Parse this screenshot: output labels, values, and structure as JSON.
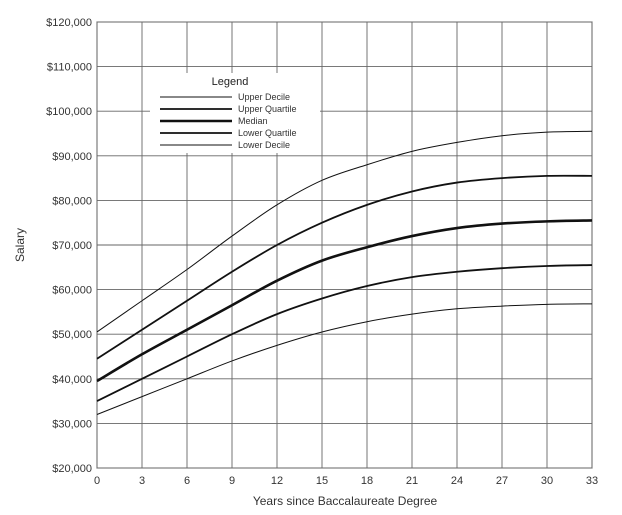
{
  "chart_data": {
    "type": "line",
    "title": "",
    "xlabel": "Years since Baccalaureate Degree",
    "ylabel": "Salary",
    "xlim": [
      0,
      33
    ],
    "ylim": [
      20000,
      120000
    ],
    "x_ticks": [
      0,
      3,
      6,
      9,
      12,
      15,
      18,
      21,
      24,
      27,
      30,
      33
    ],
    "x_tick_labels": [
      "0",
      "3",
      "6",
      "9",
      "12",
      "15",
      "18",
      "21",
      "24",
      "27",
      "30",
      "33"
    ],
    "y_ticks": [
      20000,
      30000,
      40000,
      50000,
      60000,
      70000,
      80000,
      90000,
      100000,
      110000,
      120000
    ],
    "y_tick_labels": [
      "$20,000",
      "$30,000",
      "$40,000",
      "$50,000",
      "$60,000",
      "$70,000",
      "$80,000",
      "$90,000",
      "$100,000",
      "$110,000",
      "$120,000"
    ],
    "grid": true,
    "legend": {
      "title": "Legend",
      "placement": "top-left"
    },
    "x": [
      0,
      3,
      6,
      9,
      12,
      15,
      18,
      21,
      24,
      27,
      30,
      33
    ],
    "series": [
      {
        "name": "Upper Decile",
        "stroke_weight": "thin",
        "values": [
          50500,
          57500,
          64500,
          72000,
          79000,
          84500,
          88000,
          91000,
          93000,
          94500,
          95300,
          95500
        ]
      },
      {
        "name": "Upper Quartile",
        "stroke_weight": "medium",
        "values": [
          44500,
          51000,
          57500,
          64000,
          70000,
          75000,
          79000,
          82000,
          84000,
          85000,
          85500,
          85500
        ]
      },
      {
        "name": "Median",
        "stroke_weight": "thick",
        "values": [
          39500,
          45500,
          51000,
          56500,
          62000,
          66500,
          69500,
          72000,
          73800,
          74800,
          75300,
          75500
        ]
      },
      {
        "name": "Lower Quartile",
        "stroke_weight": "medium",
        "values": [
          35000,
          40000,
          45000,
          50000,
          54500,
          58000,
          60800,
          62800,
          64000,
          64800,
          65300,
          65500
        ]
      },
      {
        "name": "Lower Decile",
        "stroke_weight": "thin",
        "values": [
          32000,
          36000,
          40000,
          44000,
          47500,
          50500,
          52800,
          54500,
          55700,
          56300,
          56700,
          56800
        ]
      }
    ]
  }
}
